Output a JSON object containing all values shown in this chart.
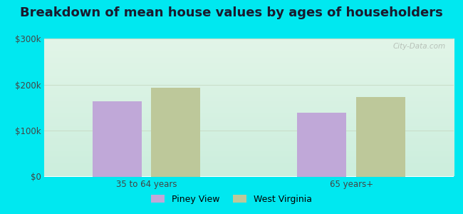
{
  "title": "Breakdown of mean house values by ages of householders",
  "categories": [
    "35 to 64 years",
    "65 years+"
  ],
  "series": {
    "Piney View": [
      163000,
      138000
    ],
    "West Virginia": [
      193000,
      173000
    ]
  },
  "bar_colors": {
    "Piney View": "#c0a8d8",
    "West Virginia": "#bdc89a"
  },
  "ylim": [
    0,
    300000
  ],
  "ytick_labels": [
    "$0",
    "$100k",
    "$200k",
    "$300k"
  ],
  "ytick_values": [
    0,
    100000,
    200000,
    300000
  ],
  "background_outer": "#00e8f0",
  "grid_color": "#c8ddc8",
  "title_fontsize": 13,
  "legend_fontsize": 9,
  "tick_fontsize": 8.5,
  "bar_width": 0.12,
  "watermark": "City-Data.com"
}
